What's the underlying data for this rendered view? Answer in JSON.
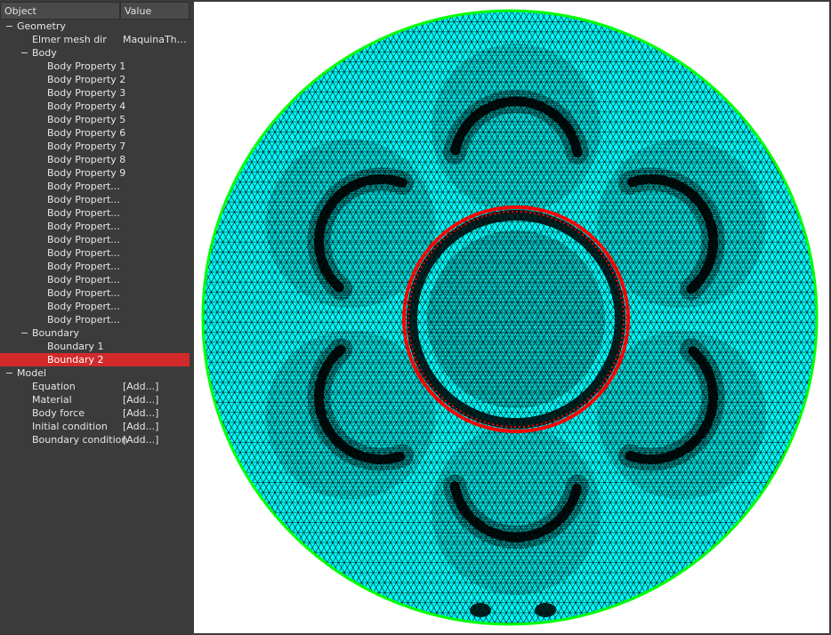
{
  "tree": {
    "columns": {
      "object": "Object",
      "value": "Value"
    },
    "geometry": {
      "label": "Geometry",
      "mesh_dir": {
        "label": "Elmer mesh dir",
        "value": "MaquinaTha..."
      },
      "body": {
        "label": "Body",
        "properties": [
          "Body Property 1",
          "Body Property 2",
          "Body Property 3",
          "Body Property 4",
          "Body Property 5",
          "Body Property 6",
          "Body Property 7",
          "Body Property 8",
          "Body Property 9",
          "Body Propert...",
          "Body Propert...",
          "Body Propert...",
          "Body Propert...",
          "Body Propert...",
          "Body Propert...",
          "Body Propert...",
          "Body Propert...",
          "Body Propert...",
          "Body Propert...",
          "Body Propert..."
        ]
      },
      "boundary": {
        "label": "Boundary",
        "items": [
          "Boundary 1",
          "Boundary 2"
        ],
        "selected_index": 1
      }
    },
    "model": {
      "label": "Model",
      "items": [
        {
          "label": "Equation",
          "value": "[Add...]"
        },
        {
          "label": "Material",
          "value": "[Add...]"
        },
        {
          "label": "Body force",
          "value": "[Add...]"
        },
        {
          "label": "Initial condition",
          "value": "[Add...]"
        },
        {
          "label": "Boundary condition",
          "value": "[Add...]"
        }
      ]
    }
  },
  "viewport": {
    "mesh_fill": "#00ffff",
    "edge_color": "#000000",
    "outer_boundary_color": "#00ff00",
    "selected_boundary_color": "#ff0000",
    "background": "#ffffff"
  }
}
